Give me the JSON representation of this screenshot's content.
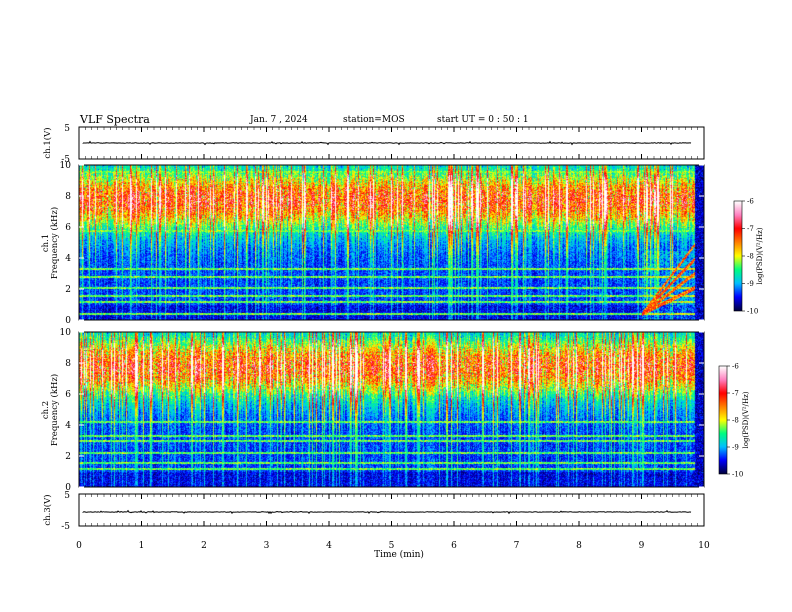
{
  "header": {
    "title": "VLF Spectra",
    "date": "Jan. 7 , 2024",
    "station": "station=MOS",
    "start_ut": "start UT = 0 : 50 : 1"
  },
  "chart_data": [
    {
      "type": "line",
      "panel": "ch1-waveform",
      "ylabel": "ch.1(V)",
      "ylim": [
        -5,
        5
      ],
      "yticks": [
        "5",
        "-5"
      ],
      "xlim": [
        0,
        10
      ],
      "series": [
        {
          "values_approx": "flat near 0 V with small spikes"
        }
      ]
    },
    {
      "type": "heatmap",
      "panel": "ch1-spectrogram",
      "ylabel": "Frequency (kHz)",
      "channel_label": "ch.1",
      "ylim": [
        0,
        10
      ],
      "yticks": [
        "0",
        "2",
        "4",
        "6",
        "8",
        "10"
      ],
      "xlim": [
        0,
        10
      ],
      "colorbar": {
        "label": "log(PSD)(V²/Hz)",
        "range": [
          -10,
          -6
        ],
        "ticks": [
          "-6",
          "-7",
          "-8",
          "-9",
          "-10"
        ]
      },
      "notable_lines_khz": [
        0.4,
        1.2,
        1.6,
        2.1,
        2.8,
        3.3,
        5.8,
        8.6,
        9.6
      ],
      "event": "rising emissions after ~9 min from 0.5 to ~4 kHz"
    },
    {
      "type": "heatmap",
      "panel": "ch2-spectrogram",
      "ylabel": "Frequency (kHz)",
      "channel_label": "ch.2",
      "ylim": [
        0,
        10
      ],
      "yticks": [
        "0",
        "2",
        "4",
        "6",
        "8",
        "10"
      ],
      "xlim": [
        0,
        10
      ],
      "colorbar": {
        "label": "log(PSD)(V²/Hz)",
        "range": [
          -10,
          -6
        ],
        "ticks": [
          "-6",
          "-7",
          "-8",
          "-9",
          "-10"
        ]
      },
      "notable_lines_khz": [
        1.2,
        1.6,
        2.2,
        3.0,
        3.3,
        4.2
      ]
    },
    {
      "type": "line",
      "panel": "ch3-waveform",
      "ylabel": "ch.3(V)",
      "ylim": [
        -5,
        5
      ],
      "yticks": [
        "5",
        "-5"
      ],
      "xlim": [
        0,
        10
      ],
      "xlabel": "Time (min)",
      "xticks": [
        "0",
        "1",
        "2",
        "3",
        "4",
        "5",
        "6",
        "7",
        "8",
        "9",
        "10"
      ],
      "series": [
        {
          "values_approx": "flat near 0 V with small spikes"
        }
      ]
    }
  ],
  "colors": {
    "colormap": [
      "#000040",
      "#0000ff",
      "#00c0ff",
      "#00ff80",
      "#ffff00",
      "#ff8000",
      "#ff0000",
      "#ff80c0",
      "#ffffff"
    ],
    "background": "#ffffff",
    "axes": "#000000"
  }
}
